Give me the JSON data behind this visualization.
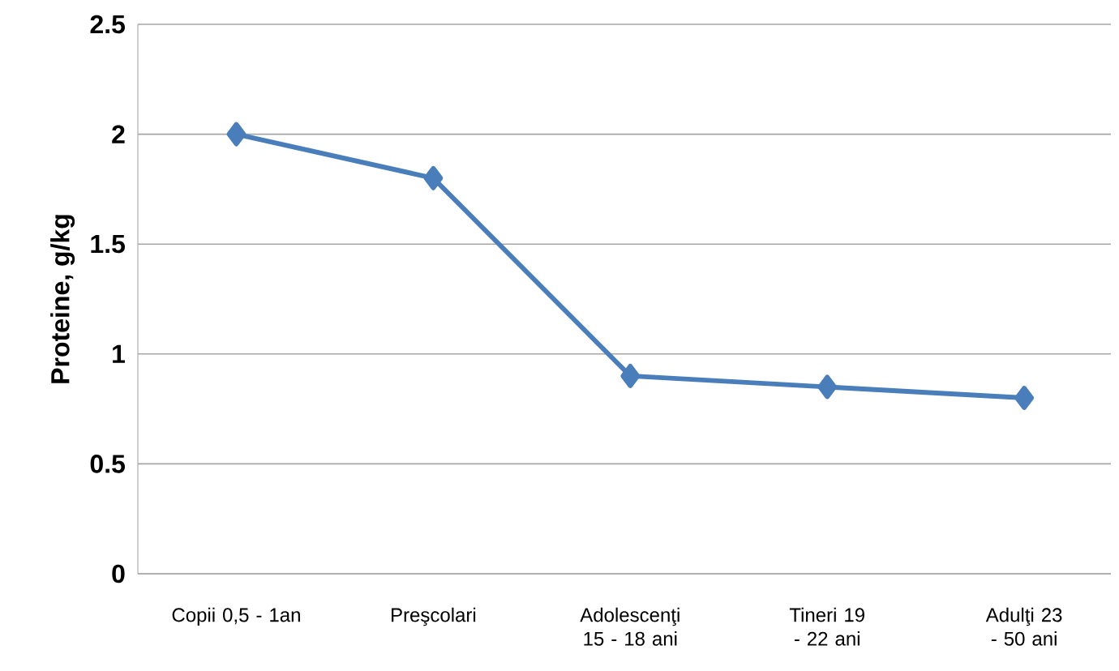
{
  "chart_data": {
    "type": "line",
    "ylabel": "Proteine, g/kg",
    "categories": [
      "Copii 0,5 - 1an",
      "Preşcolari",
      "Adolescenţi 15 - 18 ani",
      "Tineri 19 - 22 ani",
      "Adulţi 23 - 50 ani"
    ],
    "series": [
      {
        "color": "#4a7ebb",
        "values": [
          2,
          1.8,
          0.9,
          0.85,
          0.8
        ]
      }
    ],
    "ylim": [
      0,
      2.5
    ],
    "yticks": [
      0,
      0.5,
      1,
      1.5,
      2,
      2.5
    ],
    "grid": "y",
    "marker": "diamond",
    "line_style": "solid"
  }
}
